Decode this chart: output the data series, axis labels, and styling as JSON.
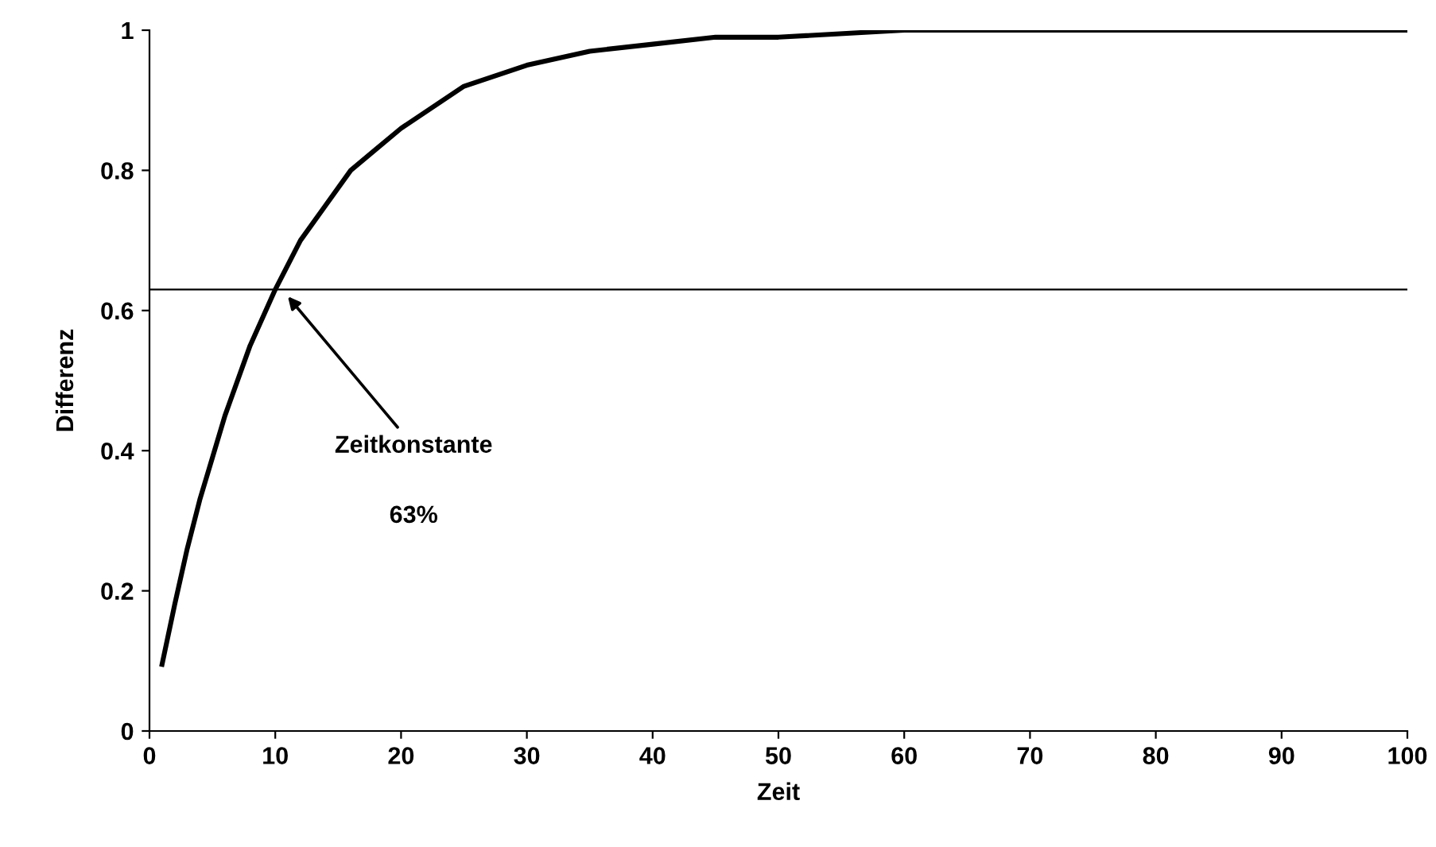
{
  "chart_data": {
    "type": "line",
    "xlabel": "Zeit",
    "ylabel": "Differenz",
    "x": [
      1,
      2,
      3,
      4,
      5,
      6,
      8,
      10,
      12,
      14,
      16,
      18,
      20,
      25,
      30,
      35,
      40,
      45,
      50,
      60,
      70,
      80,
      90,
      100
    ],
    "series": [
      {
        "color": "#000000",
        "values": [
          0.095,
          0.18,
          0.26,
          0.33,
          0.39,
          0.45,
          0.55,
          0.63,
          0.7,
          0.75,
          0.8,
          0.83,
          0.86,
          0.92,
          0.95,
          0.97,
          0.98,
          0.99,
          0.99,
          1.0,
          1.0,
          1.0,
          1.0,
          1.0
        ]
      }
    ],
    "xlim": [
      0,
      100
    ],
    "xticks": [
      0,
      10,
      20,
      30,
      40,
      50,
      60,
      70,
      80,
      90,
      100
    ],
    "ylim": [
      0,
      1
    ],
    "yticks": [
      0,
      0.2,
      0.4,
      0.6,
      0.8,
      1
    ],
    "ref_lines": [
      {
        "axis": "y",
        "value": 0.63,
        "color": "#000000"
      }
    ],
    "annotations": [
      {
        "text": "Zeitkonstante",
        "x": 11,
        "y": 0.62
      },
      "63%"
    ],
    "grid": false,
    "legend": false,
    "marker": "none",
    "line_style": "solid"
  }
}
